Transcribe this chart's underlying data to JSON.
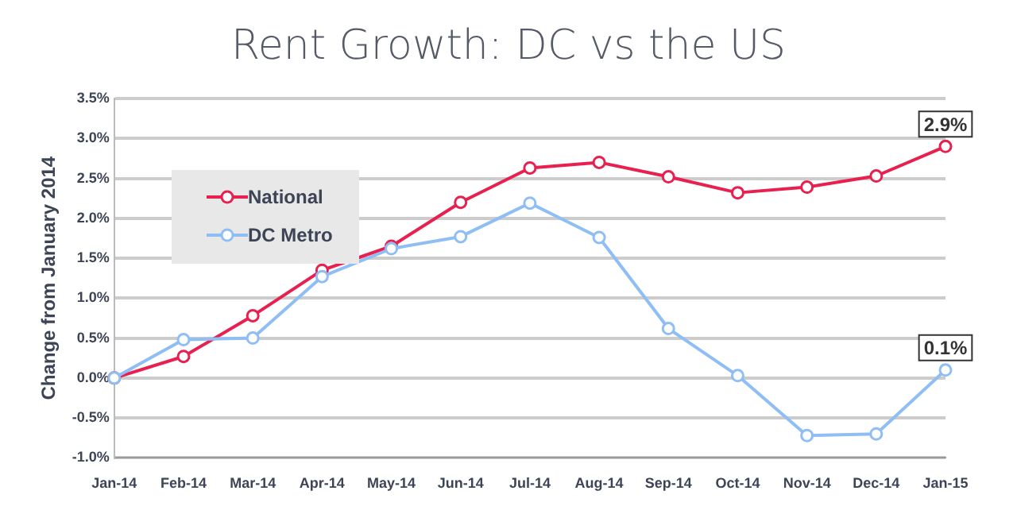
{
  "chart_data": {
    "type": "line",
    "title": "Rent Growth: DC vs the US",
    "ylabel": "Change from January 2014",
    "categories": [
      "Jan-14",
      "Feb-14",
      "Mar-14",
      "Apr-14",
      "May-14",
      "Jun-14",
      "Jul-14",
      "Aug-14",
      "Sep-14",
      "Oct-14",
      "Nov-14",
      "Dec-14",
      "Jan-15"
    ],
    "series": [
      {
        "name": "National",
        "color": "#e8204f",
        "values": [
          0,
          0.27,
          0.78,
          1.35,
          1.65,
          2.2,
          2.63,
          2.7,
          2.52,
          2.32,
          2.39,
          2.53,
          2.9
        ],
        "value_labels": [
          null,
          null,
          null,
          null,
          null,
          null,
          null,
          null,
          null,
          null,
          null,
          null,
          "2.9%"
        ]
      },
      {
        "name": "DC Metro",
        "color": "#8fbef5",
        "values": [
          0,
          0.48,
          0.5,
          1.27,
          1.62,
          1.77,
          2.19,
          1.76,
          0.62,
          0.03,
          -0.72,
          -0.7,
          0.1
        ],
        "value_labels": [
          null,
          null,
          null,
          null,
          null,
          null,
          null,
          null,
          null,
          null,
          null,
          null,
          "0.1%"
        ]
      }
    ],
    "ylim": [
      -1,
      3.5
    ],
    "yticks": [
      {
        "value": -1,
        "label": "-1.0%"
      },
      {
        "value": -0.5,
        "label": "-0.5%"
      },
      {
        "value": 0,
        "label": "0.0%"
      },
      {
        "value": 0.5,
        "label": "0.5%"
      },
      {
        "value": 1,
        "label": "1.0%"
      },
      {
        "value": 1.5,
        "label": "1.5%"
      },
      {
        "value": 2,
        "label": "2.0%"
      },
      {
        "value": 2.5,
        "label": "2.5%"
      },
      {
        "value": 3,
        "label": "3.0%"
      },
      {
        "value": 3.5,
        "label": "3.5%"
      }
    ],
    "grid": "y",
    "legend": "top left",
    "marker": "circle",
    "line_style": "solid"
  }
}
